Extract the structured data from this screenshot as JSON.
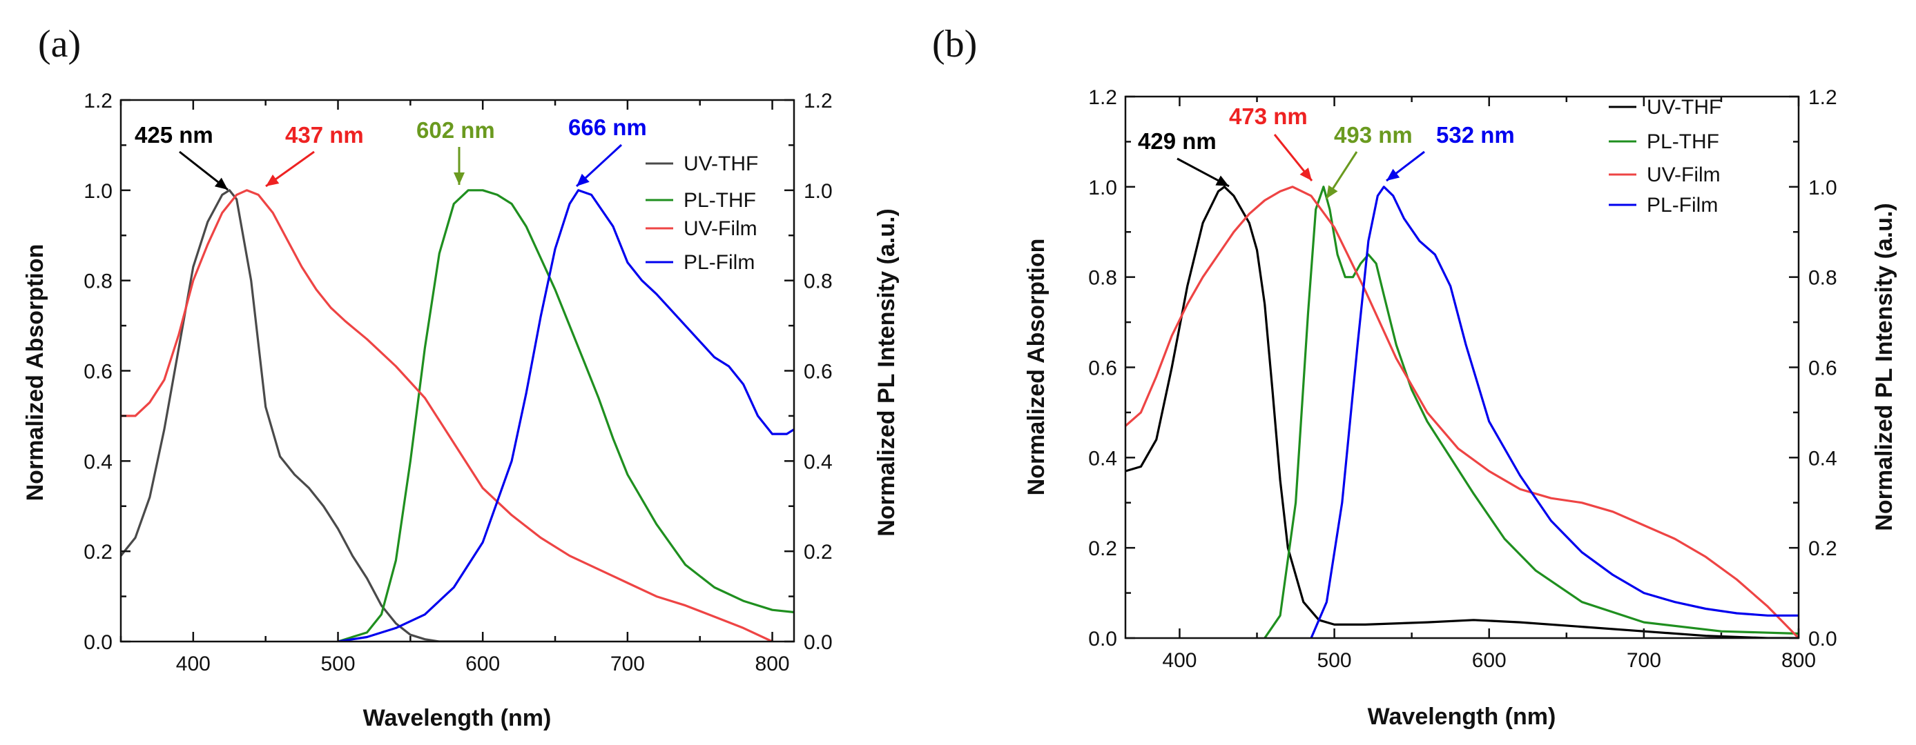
{
  "figure": {
    "colors": {
      "gray": "#4a4a4a",
      "black": "#000000",
      "green": "#1f8f1f",
      "red": "#ee4444",
      "blue": "#0000ee",
      "annGreen": "#6a9a1f"
    }
  },
  "chart_data": [
    {
      "panel_label": "(a)",
      "type": "line",
      "xlabel": "Wavelength (nm)",
      "ylabel_left": "Normalized Absorption",
      "ylabel_right": "Normalized PL Intensity (a.u.)",
      "xlim": [
        350,
        815
      ],
      "ylim": [
        0,
        1.2
      ],
      "xticks": [
        400,
        500,
        600,
        700,
        800
      ],
      "yticks": [
        0.0,
        0.2,
        0.4,
        0.6,
        0.8,
        1.0,
        1.2
      ],
      "ytick_labels": [
        "0.0",
        "0.2",
        "0.4",
        "0.6",
        "0.8",
        "1.0",
        "1.2"
      ],
      "legend": {
        "position": "top-right"
      },
      "series": [
        {
          "name": "UV-THF",
          "color": "#4a4a4a",
          "x": [
            350,
            360,
            370,
            380,
            390,
            400,
            410,
            420,
            425,
            430,
            440,
            450,
            460,
            470,
            480,
            490,
            500,
            510,
            520,
            530,
            540,
            550,
            560,
            570,
            600
          ],
          "y": [
            0.19,
            0.23,
            0.32,
            0.47,
            0.65,
            0.83,
            0.93,
            0.99,
            1.0,
            0.98,
            0.8,
            0.52,
            0.41,
            0.37,
            0.34,
            0.3,
            0.25,
            0.19,
            0.14,
            0.08,
            0.04,
            0.015,
            0.005,
            0.0,
            0.0
          ]
        },
        {
          "name": "PL-THF",
          "color": "#1f8f1f",
          "x": [
            500,
            520,
            530,
            540,
            550,
            560,
            570,
            580,
            590,
            600,
            610,
            620,
            630,
            640,
            650,
            660,
            670,
            680,
            690,
            700,
            720,
            740,
            760,
            780,
            800,
            815
          ],
          "y": [
            0.0,
            0.02,
            0.06,
            0.18,
            0.4,
            0.65,
            0.86,
            0.97,
            1.0,
            1.0,
            0.99,
            0.97,
            0.92,
            0.85,
            0.78,
            0.7,
            0.62,
            0.54,
            0.45,
            0.37,
            0.26,
            0.17,
            0.12,
            0.09,
            0.07,
            0.065
          ]
        },
        {
          "name": "UV-Film",
          "color": "#ee4444",
          "x": [
            350,
            360,
            370,
            380,
            390,
            400,
            410,
            420,
            430,
            437,
            445,
            455,
            465,
            475,
            485,
            495,
            505,
            520,
            540,
            560,
            580,
            600,
            620,
            640,
            660,
            680,
            700,
            720,
            740,
            760,
            780,
            800
          ],
          "y": [
            0.5,
            0.5,
            0.53,
            0.58,
            0.68,
            0.8,
            0.88,
            0.95,
            0.99,
            1.0,
            0.99,
            0.95,
            0.89,
            0.83,
            0.78,
            0.74,
            0.71,
            0.67,
            0.61,
            0.54,
            0.44,
            0.34,
            0.28,
            0.23,
            0.19,
            0.16,
            0.13,
            0.1,
            0.08,
            0.055,
            0.03,
            0.0
          ]
        },
        {
          "name": "PL-Film",
          "color": "#0000ee",
          "x": [
            500,
            520,
            540,
            560,
            580,
            600,
            620,
            630,
            640,
            650,
            660,
            666,
            675,
            690,
            700,
            710,
            720,
            740,
            760,
            770,
            780,
            790,
            800,
            810,
            815
          ],
          "y": [
            0.0,
            0.01,
            0.03,
            0.06,
            0.12,
            0.22,
            0.4,
            0.55,
            0.72,
            0.87,
            0.97,
            1.0,
            0.99,
            0.92,
            0.84,
            0.8,
            0.77,
            0.7,
            0.63,
            0.61,
            0.57,
            0.5,
            0.46,
            0.46,
            0.47
          ]
        }
      ],
      "annotations": [
        {
          "text": "425 nm",
          "color": "#000000",
          "x": 425,
          "y": 1.0,
          "anchor": "UV-THF"
        },
        {
          "text": "437 nm",
          "color": "#ee2222",
          "x": 437,
          "y": 1.0,
          "anchor": "UV-Film"
        },
        {
          "text": "602 nm",
          "color": "#6a9a1f",
          "x": 602,
          "y": 1.0,
          "anchor": "PL-THF"
        },
        {
          "text": "666 nm",
          "color": "#0000ee",
          "x": 666,
          "y": 1.0,
          "anchor": "PL-Film"
        }
      ]
    },
    {
      "panel_label": "(b)",
      "type": "line",
      "xlabel": "Wavelength (nm)",
      "ylabel_left": "Normalized Absorption",
      "ylabel_right": "Normalized PL Intensity (a.u.)",
      "xlim": [
        365,
        800
      ],
      "ylim": [
        0,
        1.2
      ],
      "xticks": [
        400,
        500,
        600,
        700,
        800
      ],
      "yticks": [
        0.0,
        0.2,
        0.4,
        0.6,
        0.8,
        1.0,
        1.2
      ],
      "ytick_labels": [
        "0.0",
        "0.2",
        "0.4",
        "0.6",
        "0.8",
        "1.0",
        "1.2"
      ],
      "legend": {
        "position": "top-right"
      },
      "series": [
        {
          "name": "UV-THF",
          "color": "#000000",
          "x": [
            365,
            375,
            385,
            395,
            405,
            415,
            425,
            429,
            435,
            445,
            450,
            455,
            460,
            465,
            470,
            480,
            490,
            500,
            520,
            560,
            590,
            620,
            660,
            700,
            740,
            780,
            800
          ],
          "y": [
            0.37,
            0.38,
            0.44,
            0.6,
            0.78,
            0.92,
            0.99,
            1.0,
            0.98,
            0.92,
            0.86,
            0.74,
            0.55,
            0.35,
            0.2,
            0.08,
            0.04,
            0.03,
            0.03,
            0.035,
            0.04,
            0.035,
            0.025,
            0.015,
            0.005,
            0.0,
            0.0
          ]
        },
        {
          "name": "PL-THF",
          "color": "#1f8f1f",
          "x": [
            455,
            465,
            475,
            483,
            488,
            493,
            497,
            502,
            507,
            512,
            517,
            522,
            527,
            532,
            540,
            550,
            560,
            575,
            590,
            610,
            630,
            660,
            700,
            750,
            800
          ],
          "y": [
            0.0,
            0.05,
            0.3,
            0.72,
            0.95,
            1.0,
            0.95,
            0.85,
            0.8,
            0.8,
            0.83,
            0.85,
            0.83,
            0.76,
            0.65,
            0.55,
            0.48,
            0.4,
            0.32,
            0.22,
            0.15,
            0.08,
            0.035,
            0.015,
            0.01
          ]
        },
        {
          "name": "UV-Film",
          "color": "#ee4444",
          "x": [
            365,
            375,
            385,
            395,
            405,
            415,
            425,
            435,
            445,
            455,
            465,
            473,
            485,
            500,
            520,
            540,
            560,
            580,
            600,
            620,
            640,
            660,
            680,
            700,
            720,
            740,
            760,
            780,
            800
          ],
          "y": [
            0.47,
            0.5,
            0.58,
            0.67,
            0.74,
            0.8,
            0.85,
            0.9,
            0.94,
            0.97,
            0.99,
            1.0,
            0.98,
            0.91,
            0.77,
            0.62,
            0.5,
            0.42,
            0.37,
            0.33,
            0.31,
            0.3,
            0.28,
            0.25,
            0.22,
            0.18,
            0.13,
            0.07,
            0.0
          ]
        },
        {
          "name": "PL-Film",
          "color": "#0000ee",
          "x": [
            485,
            495,
            505,
            515,
            522,
            528,
            532,
            538,
            545,
            555,
            565,
            575,
            585,
            600,
            620,
            640,
            660,
            680,
            700,
            720,
            740,
            760,
            780,
            800
          ],
          "y": [
            0.0,
            0.08,
            0.3,
            0.65,
            0.88,
            0.98,
            1.0,
            0.98,
            0.93,
            0.88,
            0.85,
            0.78,
            0.65,
            0.48,
            0.36,
            0.26,
            0.19,
            0.14,
            0.1,
            0.08,
            0.065,
            0.055,
            0.05,
            0.05
          ]
        }
      ],
      "annotations": [
        {
          "text": "429 nm",
          "color": "#000000",
          "x": 429,
          "y": 1.0,
          "anchor": "UV-THF"
        },
        {
          "text": "473 nm",
          "color": "#ee2222",
          "x": 473,
          "y": 1.0,
          "anchor": "UV-Film"
        },
        {
          "text": "493 nm",
          "color": "#6a9a1f",
          "x": 493,
          "y": 1.0,
          "anchor": "PL-THF"
        },
        {
          "text": "532 nm",
          "color": "#0000ee",
          "x": 532,
          "y": 1.0,
          "anchor": "PL-Film"
        }
      ]
    }
  ]
}
